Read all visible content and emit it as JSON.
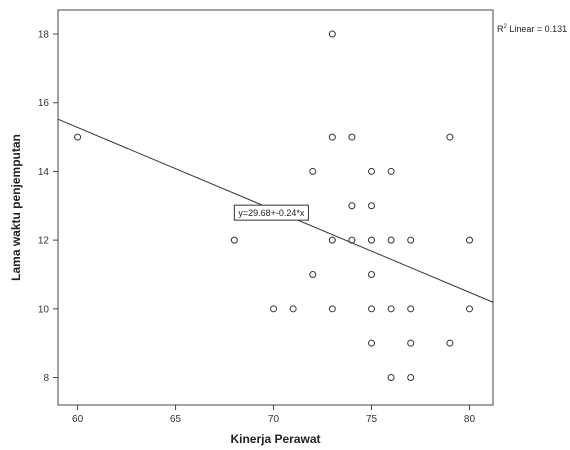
{
  "chart_data": {
    "type": "scatter",
    "xlabel": "Kinerja Perawat",
    "ylabel": "Lama waktu penjemputan",
    "xlim": [
      59,
      81.2
    ],
    "ylim": [
      7.2,
      18.7
    ],
    "x_ticks": [
      "60",
      "65",
      "70",
      "75",
      "80"
    ],
    "y_ticks": [
      "8",
      "10",
      "12",
      "14",
      "16",
      "18"
    ],
    "grid": false,
    "series": [
      {
        "points": [
          {
            "x": 60,
            "y": 15
          },
          {
            "x": 68,
            "y": 12
          },
          {
            "x": 70,
            "y": 10
          },
          {
            "x": 71,
            "y": 10
          },
          {
            "x": 72,
            "y": 14
          },
          {
            "x": 72,
            "y": 11
          },
          {
            "x": 73,
            "y": 18
          },
          {
            "x": 73,
            "y": 15
          },
          {
            "x": 73,
            "y": 12
          },
          {
            "x": 73,
            "y": 10
          },
          {
            "x": 74,
            "y": 15
          },
          {
            "x": 74,
            "y": 13
          },
          {
            "x": 74,
            "y": 12
          },
          {
            "x": 75,
            "y": 14
          },
          {
            "x": 75,
            "y": 13
          },
          {
            "x": 75,
            "y": 12
          },
          {
            "x": 75,
            "y": 11
          },
          {
            "x": 75,
            "y": 10
          },
          {
            "x": 75,
            "y": 9
          },
          {
            "x": 76,
            "y": 14
          },
          {
            "x": 76,
            "y": 12
          },
          {
            "x": 76,
            "y": 10
          },
          {
            "x": 76,
            "y": 8
          },
          {
            "x": 77,
            "y": 12
          },
          {
            "x": 77,
            "y": 10
          },
          {
            "x": 77,
            "y": 9
          },
          {
            "x": 77,
            "y": 8
          },
          {
            "x": 79,
            "y": 15
          },
          {
            "x": 79,
            "y": 9
          },
          {
            "x": 80,
            "y": 12
          },
          {
            "x": 80,
            "y": 10
          }
        ]
      }
    ],
    "fit_line": {
      "intercept": 29.68,
      "slope": -0.24
    },
    "fit_label": "y=29.68+-0.24*x",
    "r2_prefix": "R",
    "r2_sup": "2",
    "r2_suffix": " Linear = 0.131"
  }
}
